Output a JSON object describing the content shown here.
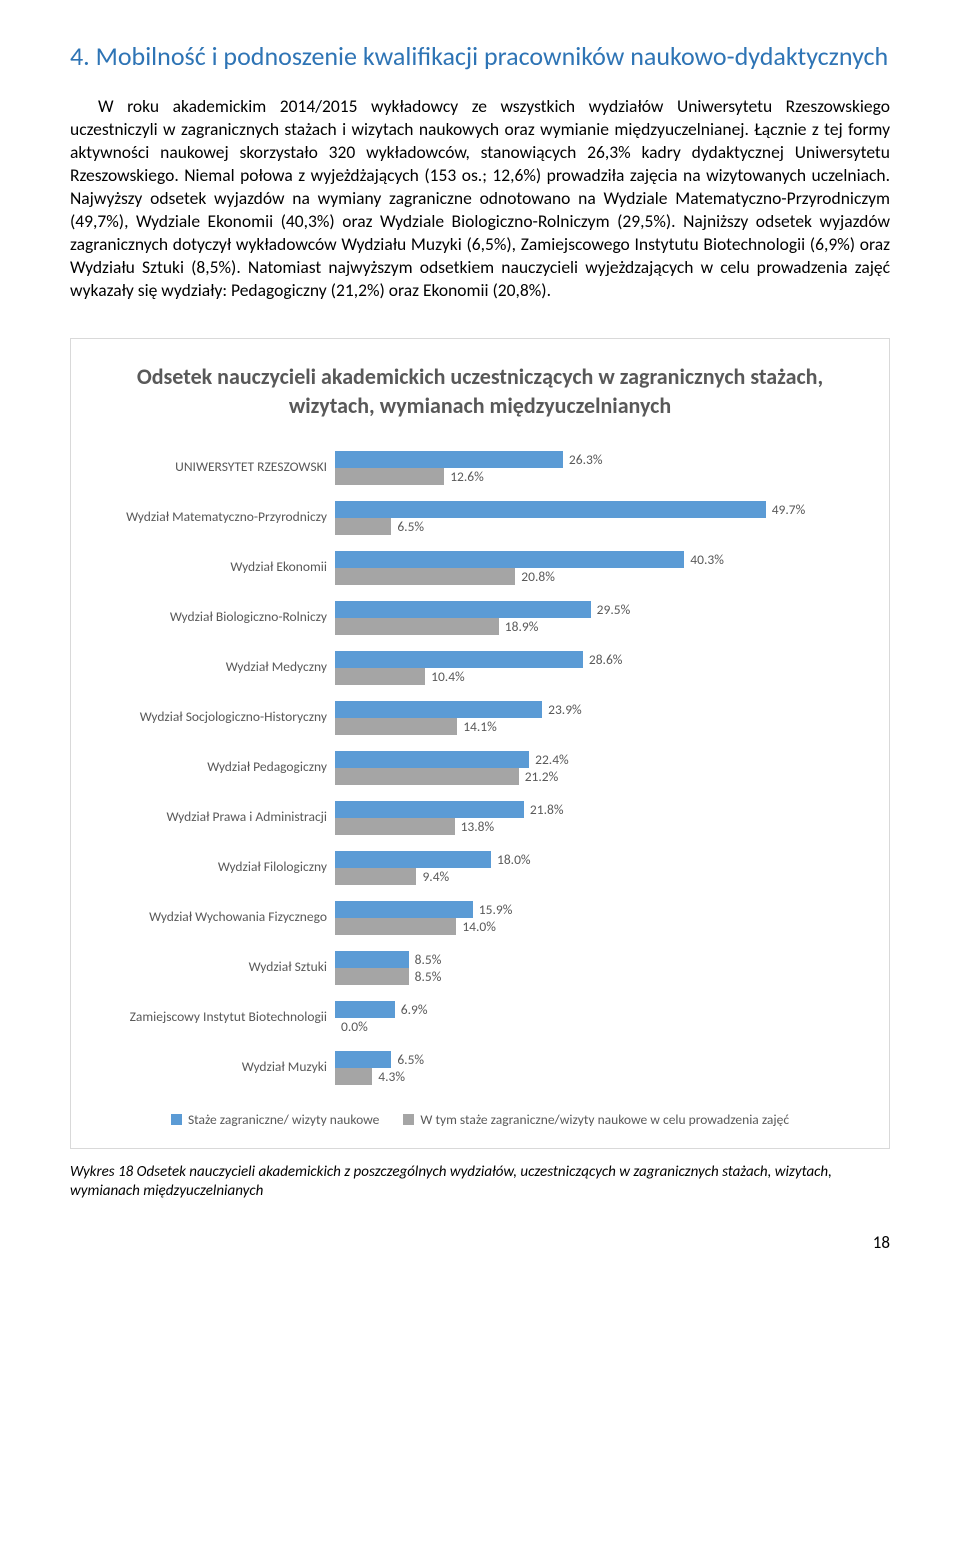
{
  "heading": "4. Mobilność i podnoszenie kwalifikacji pracowników naukowo-dydaktycznych",
  "paragraph": "W roku akademickim 2014/2015 wykładowcy ze wszystkich wydziałów Uniwersytetu Rzeszowskiego uczestniczyli w zagranicznych stażach i wizytach naukowych oraz wymianie międzyuczelnianej. Łącznie z tej formy aktywności naukowej skorzystało 320 wykładowców, stanowiących 26,3% kadry dydaktycznej Uniwersytetu Rzeszowskiego. Niemal połowa z wyjeżdżających (153 os.; 12,6%) prowadziła zajęcia na wizytowanych uczelniach. Najwyższy odsetek wyjazdów na wymiany zagraniczne odnotowano na Wydziale Matematyczno-Przyrodniczym (49,7%), Wydziale Ekonomii (40,3%) oraz Wydziale Biologiczno-Rolniczym (29,5%). Najniższy odsetek wyjazdów zagranicznych dotyczył wykładowców Wydziału Muzyki (6,5%), Zamiejscowego Instytutu Biotechnologii (6,9%) oraz Wydziału Sztuki (8,5%). Natomiast najwyższym odsetkiem nauczycieli wyjeżdzających w celu prowadzenia zajęć wykazały się wydziały: Pedagogiczny (21,2%) oraz Ekonomii (20,8%).",
  "chart": {
    "type": "bar",
    "title": "Odsetek nauczycieli akademickich uczestniczących w zagranicznych stażach, wizytach, wymianach międzyuczelnianych",
    "max_value": 60,
    "categories": [
      {
        "label": "UNIWERSYTET RZESZOWSKI",
        "v1": 26.3,
        "v2": 12.6
      },
      {
        "label": "Wydział Matematyczno-Przyrodniczy",
        "v1": 49.7,
        "v2": 6.5
      },
      {
        "label": "Wydział Ekonomii",
        "v1": 40.3,
        "v2": 20.8
      },
      {
        "label": "Wydział Biologiczno-Rolniczy",
        "v1": 29.5,
        "v2": 18.9
      },
      {
        "label": "Wydział Medyczny",
        "v1": 28.6,
        "v2": 10.4
      },
      {
        "label": "Wydział Socjologiczno-Historyczny",
        "v1": 23.9,
        "v2": 14.1
      },
      {
        "label": "Wydział Pedagogiczny",
        "v1": 22.4,
        "v2": 21.2
      },
      {
        "label": "Wydział Prawa i Administracji",
        "v1": 21.8,
        "v2": 13.8
      },
      {
        "label": "Wydział Filologiczny",
        "v1": 18.0,
        "v2": 9.4
      },
      {
        "label": "Wydział Wychowania Fizycznego",
        "v1": 15.9,
        "v2": 14.0
      },
      {
        "label": "Wydział Sztuki",
        "v1": 8.5,
        "v2": 8.5
      },
      {
        "label": "Zamiejscowy Instytut Biotechnologii",
        "v1": 6.9,
        "v2": 0.0
      },
      {
        "label": "Wydział Muzyki",
        "v1": 6.5,
        "v2": 4.3
      }
    ],
    "series": [
      {
        "name": "Staże zagraniczne/ wizyty naukowe",
        "color": "#5b9bd5"
      },
      {
        "name": "W tym staże zagraniczne/wizyty naukowe w celu prowadzenia zajęć",
        "color": "#a5a5a5"
      }
    ],
    "label_color": "#595959",
    "title_color": "#595959",
    "border_color": "#d9d9d9",
    "background_color": "#ffffff"
  },
  "caption": "Wykres 18 Odsetek nauczycieli akademickich z poszczególnych wydziałów, uczestniczących w zagranicznych stażach, wizytach, wymianach międzyuczelnianych",
  "page_number": "18"
}
